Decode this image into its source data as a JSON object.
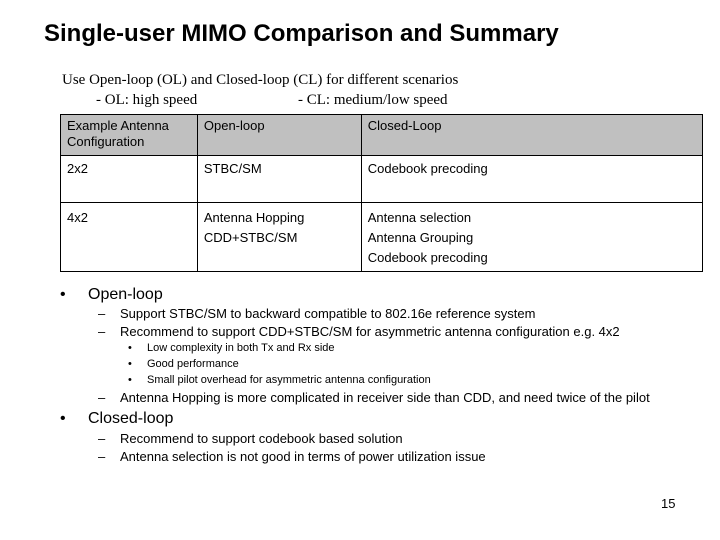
{
  "title": "Single-user MIMO Comparison and Summary",
  "intro": {
    "line1": "Use Open-loop (OL) and Closed-loop (CL) for different scenarios",
    "line2a": "- OL: high speed",
    "line2b": "- CL: medium/low speed"
  },
  "table": {
    "headers": [
      "Example Antenna Configuration",
      "Open-loop",
      "Closed-Loop"
    ],
    "rows": [
      {
        "config": "2x2",
        "open": [
          "STBC/SM"
        ],
        "closed": [
          "Codebook precoding"
        ]
      },
      {
        "config": "4x2",
        "open": [
          "Antenna Hopping",
          "CDD+STBC/SM"
        ],
        "closed": [
          "Antenna selection",
          "Antenna Grouping",
          "Codebook precoding"
        ]
      }
    ]
  },
  "markers": {
    "bullet": "•",
    "dash": "–"
  },
  "bullets": {
    "open_loop": {
      "label": "Open-loop",
      "items": [
        "Support STBC/SM to backward compatible to 802.16e reference system",
        "Recommend to support CDD+STBC/SM for asymmetric antenna configuration e.g. 4x2"
      ],
      "subitems": [
        "Low complexity in both Tx and Rx side",
        "Good performance",
        "Small pilot overhead for asymmetric antenna configuration"
      ],
      "last_item": "Antenna Hopping is more complicated in receiver side than CDD, and need twice of the pilot"
    },
    "closed_loop": {
      "label": "Closed-loop",
      "items": [
        "Recommend to support codebook based solution",
        "Antenna selection is not good in terms of power utilization issue"
      ]
    }
  },
  "page_number": "15"
}
